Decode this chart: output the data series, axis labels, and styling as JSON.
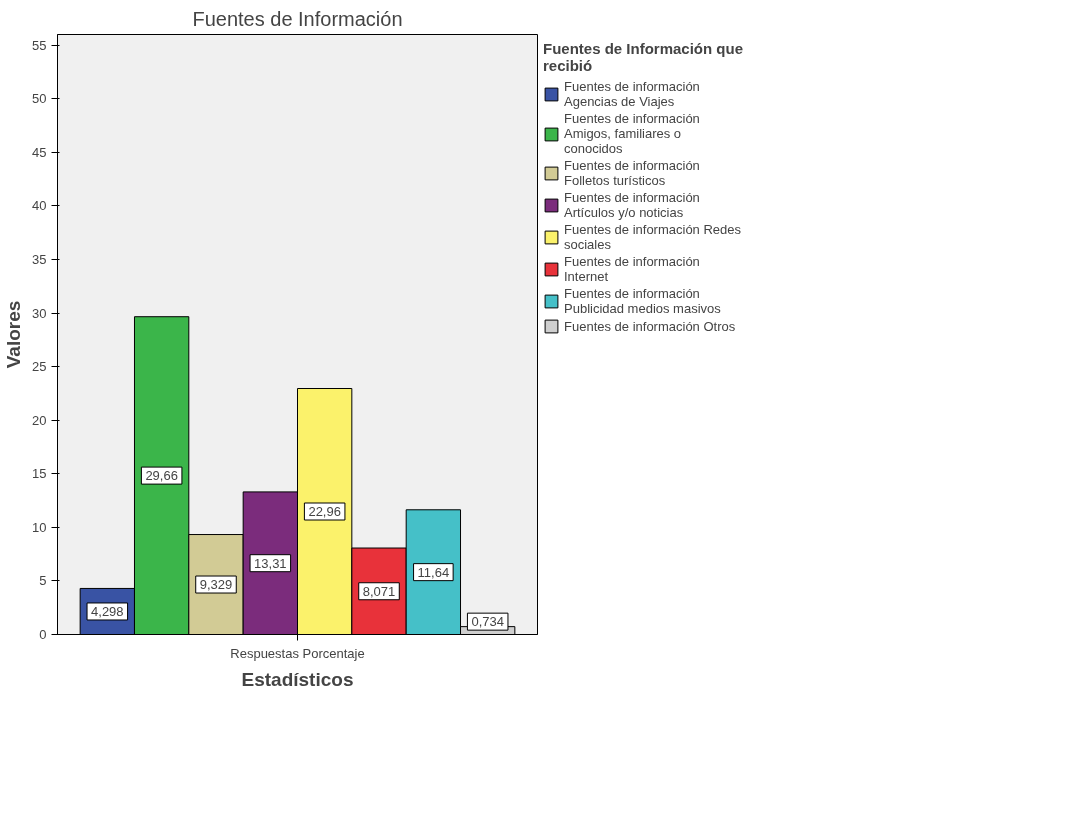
{
  "chart_data": {
    "type": "bar",
    "title": "Fuentes de Información",
    "xlabel": "Estadísticos",
    "ylabel": "Valores",
    "legend_title": "Fuentes de Información que recibió",
    "categories": [
      "Respuestas Porcentaje"
    ],
    "ylim": [
      0,
      56
    ],
    "yticks": [
      0,
      5,
      10,
      15,
      20,
      25,
      30,
      35,
      40,
      45,
      50,
      55
    ],
    "grid": false,
    "legend": "right",
    "series": [
      {
        "name": "Fuentes de información Agencias de Viajes",
        "color": "#3953a4",
        "values": [
          4.298
        ],
        "value_labels": [
          "4,298"
        ]
      },
      {
        "name": "Fuentes de información Amigos, familiares o conocidos",
        "color": "#3bb54a",
        "values": [
          29.66
        ],
        "value_labels": [
          "29,66"
        ]
      },
      {
        "name": "Fuentes de información Folletos turísticos",
        "color": "#d2cb95",
        "values": [
          9.329
        ],
        "value_labels": [
          "9,329"
        ]
      },
      {
        "name": "Fuentes de información Artículos y/o noticias",
        "color": "#7b2c7c",
        "values": [
          13.31
        ],
        "value_labels": [
          "13,31"
        ]
      },
      {
        "name": "Fuentes de información Redes sociales",
        "color": "#fbf26b",
        "values": [
          22.96
        ],
        "value_labels": [
          "22,96"
        ]
      },
      {
        "name": "Fuentes de información Internet",
        "color": "#e8323a",
        "values": [
          8.071
        ],
        "value_labels": [
          "8,071"
        ]
      },
      {
        "name": "Fuentes de información Publicidad medios masivos",
        "color": "#45c0c8",
        "values": [
          11.64
        ],
        "value_labels": [
          "11,64"
        ]
      },
      {
        "name": "Fuentes de información Otros",
        "color": "#cfcfcf",
        "values": [
          0.734
        ],
        "value_labels": [
          "0,734"
        ]
      }
    ]
  }
}
